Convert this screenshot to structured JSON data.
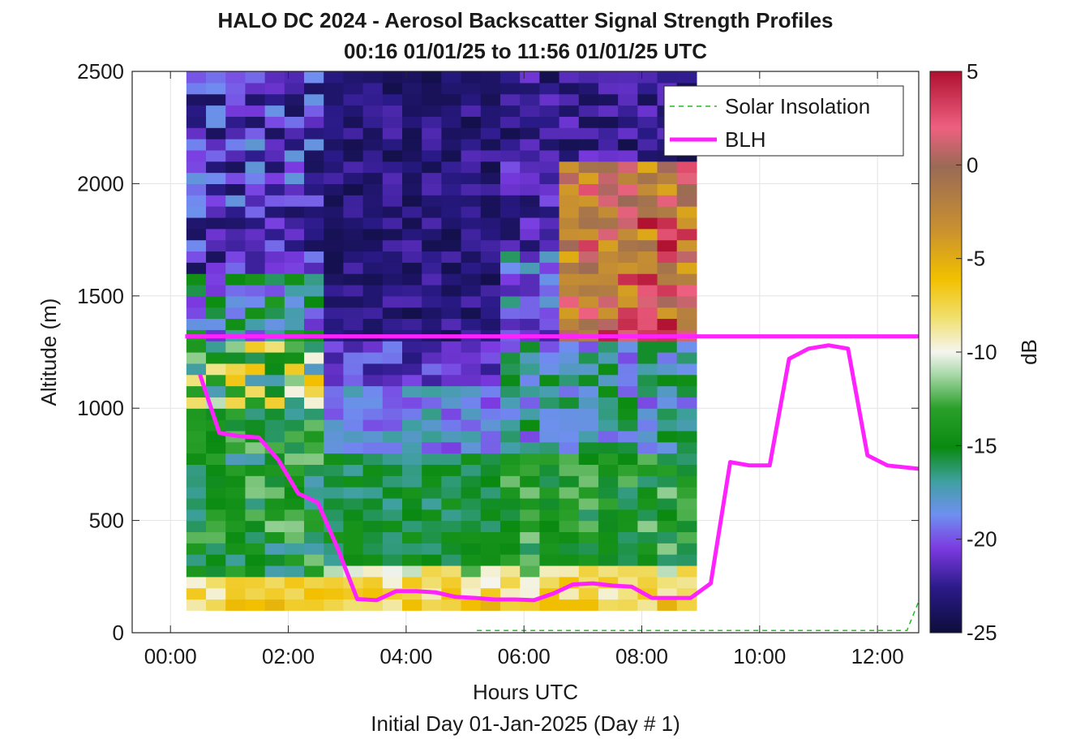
{
  "chart_data": {
    "type": "heatmap",
    "title": "HALO DC 2024 - Aerosol Backscatter Signal Strength Profiles",
    "subtitle": "00:16 01/01/25 to 11:56 01/01/25  UTC",
    "xlabel": "Hours UTC",
    "xlabel2": "Initial Day 01-Jan-2025 (Day # 1)",
    "ylabel": "Altitude (m)",
    "colorbar_label": "dB",
    "xlim_hours": [
      -0.65,
      12.7
    ],
    "ylim": [
      0,
      2500
    ],
    "x_ticks": [
      "00:00",
      "02:00",
      "04:00",
      "06:00",
      "08:00",
      "10:00",
      "12:00"
    ],
    "x_tick_values": [
      0,
      2,
      4,
      6,
      8,
      10,
      12
    ],
    "y_ticks": [
      0,
      500,
      1000,
      1500,
      2000,
      2500
    ],
    "colorbar_ticks": [
      5,
      0,
      -5,
      -10,
      -15,
      -20,
      -25
    ],
    "color_range": [
      -25,
      5
    ],
    "grid": true,
    "legend_position": "top-right",
    "legend": [
      {
        "label": "Solar Insolation",
        "color": "#22bb22",
        "style": "dashed"
      },
      {
        "label": "BLH",
        "color": "#ff22ff",
        "style": "solid"
      }
    ],
    "heatmap": {
      "x_start_hours": 0.27,
      "x_step_hours": 0.333,
      "y_start_m": 100,
      "y_step_m": 50,
      "columns": 26,
      "rows": 48,
      "value_units": "dB"
    },
    "blh_reference_m": 1320,
    "blh": {
      "x_hours": [
        0.5,
        0.83,
        1.17,
        1.5,
        1.83,
        2.17,
        2.5,
        2.83,
        3.17,
        3.5,
        3.83,
        4.17,
        4.5,
        4.83,
        5.17,
        5.5,
        5.83,
        6.17,
        6.5,
        6.83,
        7.17,
        7.5,
        7.83,
        8.17,
        8.5,
        8.83,
        9.17,
        9.5,
        9.83,
        10.17,
        10.5,
        10.83,
        11.17,
        11.5,
        11.83,
        12.17,
        12.7
      ],
      "altitude_m": [
        1150,
        890,
        875,
        870,
        770,
        620,
        580,
        380,
        150,
        145,
        185,
        185,
        180,
        160,
        155,
        148,
        148,
        145,
        175,
        215,
        220,
        210,
        205,
        155,
        155,
        155,
        220,
        760,
        745,
        745,
        1220,
        1265,
        1280,
        1265,
        790,
        745,
        730
      ]
    },
    "solar_insolation": {
      "x_hours": [
        5.2,
        12.5,
        12.7
      ],
      "altitude_m": [
        10,
        10,
        140
      ]
    }
  }
}
